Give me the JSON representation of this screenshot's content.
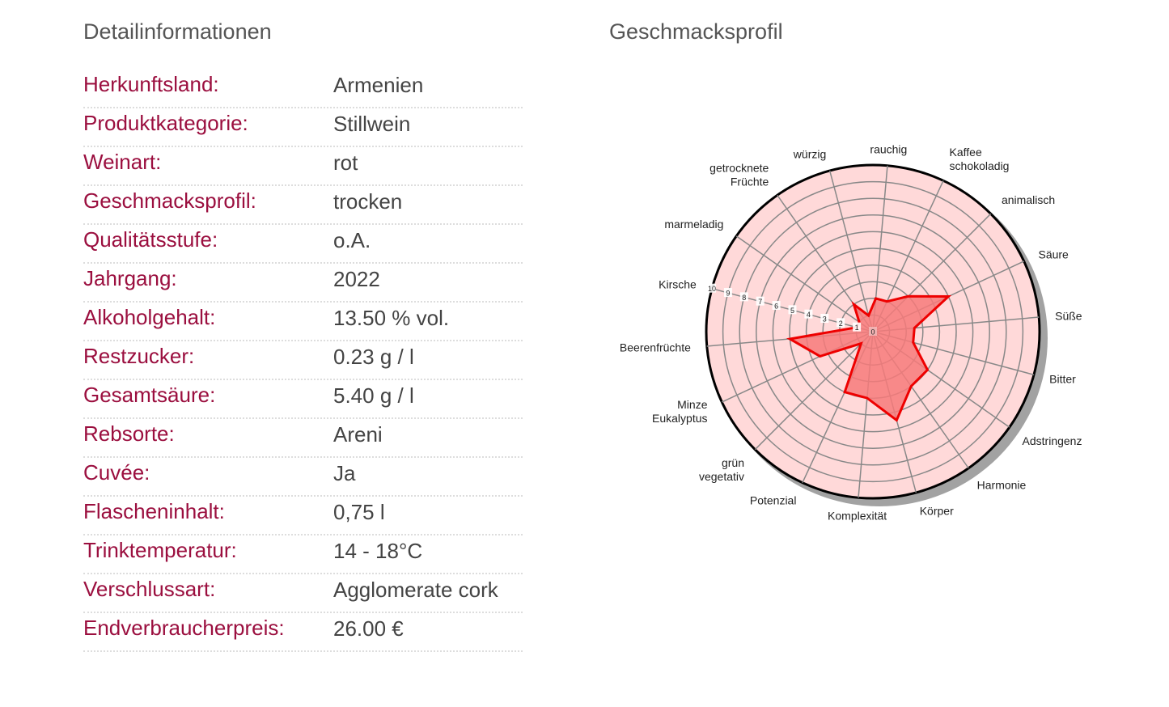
{
  "details": {
    "heading": "Detailinformationen",
    "rows": [
      {
        "label": "Herkunftsland:",
        "value": "Armenien"
      },
      {
        "label": "Produktkategorie:",
        "value": "Stillwein"
      },
      {
        "label": "Weinart:",
        "value": "rot"
      },
      {
        "label": "Geschmacksprofil:",
        "value": "trocken"
      },
      {
        "label": "Qualitätsstufe:",
        "value": "o.A."
      },
      {
        "label": "Jahrgang:",
        "value": "2022"
      },
      {
        "label": "Alkoholgehalt:",
        "value": "13.50 % vol."
      },
      {
        "label": "Restzucker:",
        "value": "0.23 g / l"
      },
      {
        "label": "Gesamtsäure:",
        "value": "5.40 g / l"
      },
      {
        "label": "Rebsorte:",
        "value": "Areni"
      },
      {
        "label": "Cuvée:",
        "value": "Ja"
      },
      {
        "label": "Flascheninhalt:",
        "value": "0,75 l"
      },
      {
        "label": "Trinktemperatur:",
        "value": "14 - 18°C"
      },
      {
        "label": "Verschlussart:",
        "value": "Agglomerate cork"
      },
      {
        "label": "Endverbraucherpreis:",
        "value": "26.00 €"
      }
    ]
  },
  "profile": {
    "heading": "Geschmacksprofil"
  },
  "chart_data": {
    "type": "radar",
    "range": [
      0,
      10
    ],
    "ticks": [
      "0",
      "1",
      "2",
      "3",
      "4",
      "5",
      "6",
      "7",
      "8",
      "9",
      "10"
    ],
    "categories": [
      [
        "rauchig"
      ],
      [
        "Kaffee",
        "schokoladig"
      ],
      [
        "animalisch"
      ],
      [
        "Säure"
      ],
      [
        "Süße"
      ],
      [
        "Bitter"
      ],
      [
        "Adstringenz"
      ],
      [
        "Harmonie"
      ],
      [
        "Körper"
      ],
      [
        "Komplexität"
      ],
      [
        "Potenzial"
      ],
      [
        "grün",
        "vegetativ"
      ],
      [
        "Minze",
        "Eukalyptus"
      ],
      [
        "Beerenfrüchte"
      ],
      [
        "Kirsche"
      ],
      [
        "marmeladig"
      ],
      [
        "getrocknete",
        "Früchte"
      ],
      [
        "würzig"
      ]
    ],
    "values": [
      2,
      2,
      3,
      5,
      2.5,
      2.5,
      4,
      4,
      5.5,
      4,
      4,
      1,
      3.5,
      5,
      1,
      1,
      2,
      1
    ],
    "colors": {
      "background": "#ffd9d9",
      "fill": "#f77a7a",
      "line": "#ee0000",
      "grid": "#888888"
    }
  }
}
